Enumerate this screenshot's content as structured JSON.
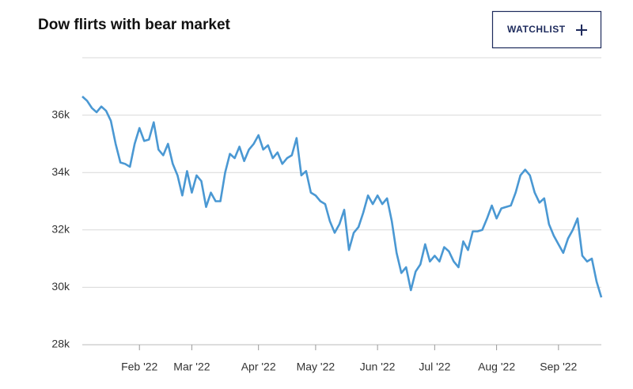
{
  "watchlist_button": "WATCHLIST",
  "chart_data": {
    "type": "line",
    "title": "Dow flirts with bear market",
    "categories": [
      null,
      null,
      null,
      null,
      null,
      null,
      null,
      null,
      null,
      null,
      null,
      null,
      "Feb '22",
      null,
      null,
      null,
      null,
      null,
      null,
      null,
      null,
      null,
      null,
      "Mar '22",
      null,
      null,
      null,
      null,
      null,
      null,
      null,
      null,
      null,
      null,
      null,
      null,
      null,
      "Apr '22",
      null,
      null,
      null,
      null,
      null,
      null,
      null,
      null,
      null,
      null,
      null,
      "May '22",
      null,
      null,
      null,
      null,
      null,
      null,
      null,
      null,
      null,
      null,
      null,
      null,
      "Jun '22",
      null,
      null,
      null,
      null,
      null,
      null,
      null,
      null,
      null,
      null,
      null,
      "Jul '22",
      null,
      null,
      null,
      null,
      null,
      null,
      null,
      null,
      null,
      null,
      null,
      null,
      "Aug '22",
      null,
      null,
      null,
      null,
      null,
      null,
      null,
      null,
      null,
      null,
      null,
      null,
      "Sep '22",
      null,
      null,
      null,
      null,
      null,
      null,
      null,
      null,
      null
    ],
    "values": [
      36650,
      36500,
      36250,
      36100,
      36300,
      36150,
      35800,
      35000,
      34350,
      34300,
      34200,
      35000,
      35550,
      35100,
      35150,
      35750,
      34800,
      34600,
      35000,
      34300,
      33900,
      33200,
      34050,
      33300,
      33900,
      33700,
      32800,
      33300,
      33000,
      33000,
      34000,
      34650,
      34500,
      34900,
      34400,
      34800,
      35000,
      35300,
      34800,
      34950,
      34500,
      34700,
      34300,
      34500,
      34600,
      35200,
      33900,
      34050,
      33300,
      33200,
      33000,
      32900,
      32300,
      31900,
      32200,
      32700,
      31300,
      31900,
      32100,
      32600,
      33200,
      32900,
      33200,
      32900,
      33100,
      32300,
      31200,
      30500,
      30700,
      29900,
      30550,
      30800,
      31500,
      30900,
      31100,
      30900,
      31400,
      31250,
      30900,
      30700,
      31600,
      31300,
      31950,
      31950,
      32000,
      32400,
      32850,
      32400,
      32750,
      32800,
      32850,
      33300,
      33900,
      34100,
      33900,
      33300,
      32950,
      33100,
      32200,
      31800,
      31500,
      31200,
      31700,
      32000,
      32400,
      31100,
      30900,
      31000,
      30200,
      29650
    ],
    "color": "#4a98d3",
    "ylim": [
      28000,
      38000
    ],
    "yticks": [
      {
        "value": 28000,
        "label": "28k"
      },
      {
        "value": 30000,
        "label": "30k"
      },
      {
        "value": 32000,
        "label": "32k"
      },
      {
        "value": 34000,
        "label": "34k"
      },
      {
        "value": 36000,
        "label": "36k"
      }
    ],
    "grid": true
  }
}
